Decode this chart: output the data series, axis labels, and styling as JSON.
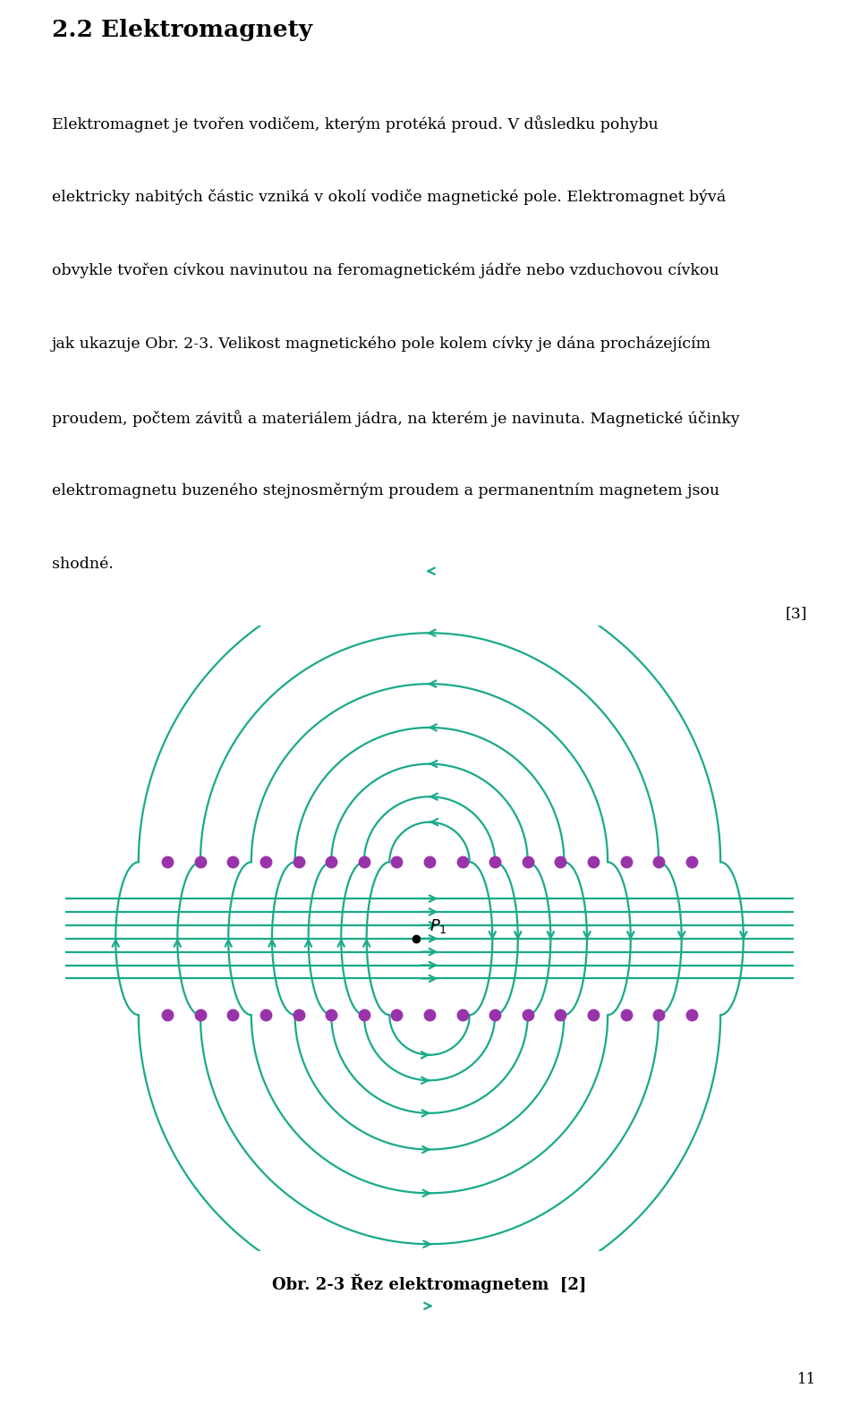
{
  "title": "2.2 Elektromagnety",
  "line1": "Elektromagnet je tvořen vodičem, kterým protéká proud. V důsledku pohybu",
  "line2": "elektricky nabitých částic vzniká v okolí vodiče magnetické pole. Elektromagnet bývá",
  "line3": "obvykle tvořen cívkou navinutou na feromagnetickém jádře nebo vzduchovou cívkou",
  "line4": "jak ukazuje Obr. 2-3. Velikost magnetického pole kolem cívky je dána procházejícím",
  "line5": "proudem, počtem závitů a materiálem jádra, na kterém je navinuta. Magnetické účinky",
  "line6": "elektromagnetu buzeného stejnosměrným proudem a permanentním magnetem jsou",
  "line7": "shodné.",
  "reference": "[3]",
  "caption": "Obr. 2-3 Řez elektromagnetem  [2]",
  "page_number": "11",
  "line_color": "#1aaa8a",
  "dot_color": "#9933aa",
  "background_color": "#ffffff"
}
